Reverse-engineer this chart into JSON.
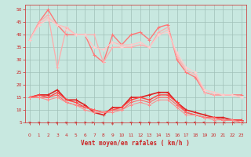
{
  "background_color": "#c8e8e0",
  "grid_color": "#a0c0b8",
  "xlabel": "Vent moyen/en rafales ( km/h )",
  "xlim": [
    -0.5,
    23.5
  ],
  "ylim": [
    5,
    52
  ],
  "yticks": [
    5,
    10,
    15,
    20,
    25,
    30,
    35,
    40,
    45,
    50
  ],
  "xticks": [
    0,
    1,
    2,
    3,
    4,
    5,
    6,
    7,
    8,
    9,
    10,
    11,
    12,
    13,
    14,
    15,
    16,
    17,
    18,
    19,
    20,
    21,
    22,
    23
  ],
  "high_series": [
    {
      "y": [
        38,
        45,
        50,
        44,
        40,
        40,
        40,
        32,
        29,
        40,
        36,
        40,
        41,
        38,
        43,
        44,
        30,
        25,
        23,
        17,
        16,
        16,
        16,
        16
      ],
      "color": "#ff7777",
      "lw": 1.0
    },
    {
      "y": [
        38,
        45,
        48,
        27,
        43,
        40,
        40,
        40,
        29,
        35,
        35,
        35,
        36,
        35,
        41,
        43,
        31,
        26,
        24,
        17,
        16,
        16,
        16,
        15
      ],
      "color": "#ffaaaa",
      "lw": 0.9
    },
    {
      "y": [
        38,
        44,
        47,
        44,
        43,
        40,
        40,
        35,
        34,
        37,
        36,
        36,
        37,
        35,
        40,
        42,
        32,
        26,
        24,
        18,
        17,
        16,
        16,
        15
      ],
      "color": "#ffbbbb",
      "lw": 0.8
    },
    {
      "y": [
        38,
        44,
        46,
        44,
        42,
        40,
        40,
        35,
        34,
        37,
        35,
        36,
        37,
        35,
        40,
        41,
        33,
        27,
        25,
        18,
        17,
        16,
        16,
        15
      ],
      "color": "#ffcccc",
      "lw": 0.7
    }
  ],
  "low_series": [
    {
      "y": [
        15,
        16,
        16,
        18,
        14,
        14,
        12,
        9,
        8,
        11,
        11,
        15,
        15,
        16,
        17,
        17,
        13,
        10,
        9,
        8,
        7,
        7,
        6,
        6
      ],
      "color": "#dd2222",
      "lw": 1.2
    },
    {
      "y": [
        15,
        16,
        15,
        17,
        14,
        13,
        11,
        10,
        9,
        10,
        11,
        14,
        15,
        14,
        16,
        16,
        13,
        9,
        8,
        7,
        7,
        6,
        6,
        6
      ],
      "color": "#ff4444",
      "lw": 1.0
    },
    {
      "y": [
        15,
        15,
        15,
        16,
        13,
        12,
        11,
        10,
        9,
        10,
        10,
        13,
        14,
        13,
        15,
        15,
        12,
        9,
        8,
        7,
        7,
        6,
        6,
        5
      ],
      "color": "#ff6666",
      "lw": 0.8
    },
    {
      "y": [
        15,
        15,
        14,
        15,
        13,
        12,
        10,
        9,
        9,
        9,
        10,
        12,
        13,
        12,
        14,
        14,
        11,
        8,
        8,
        7,
        6,
        6,
        6,
        5
      ],
      "color": "#ff8888",
      "lw": 0.7
    }
  ],
  "trend_high": {
    "x": [
      0,
      23
    ],
    "y": [
      38,
      16
    ],
    "color": "#ffaaaa",
    "lw": 0.8
  },
  "trend_low": {
    "x": [
      0,
      23
    ],
    "y": [
      15,
      6
    ],
    "color": "#ff6666",
    "lw": 0.8
  },
  "arrow_angles_deg": [
    225,
    225,
    225,
    200,
    210,
    225,
    230,
    260,
    200,
    180,
    160,
    155,
    145,
    145,
    140,
    140,
    135,
    135,
    120,
    115,
    100,
    90,
    90,
    80
  ]
}
